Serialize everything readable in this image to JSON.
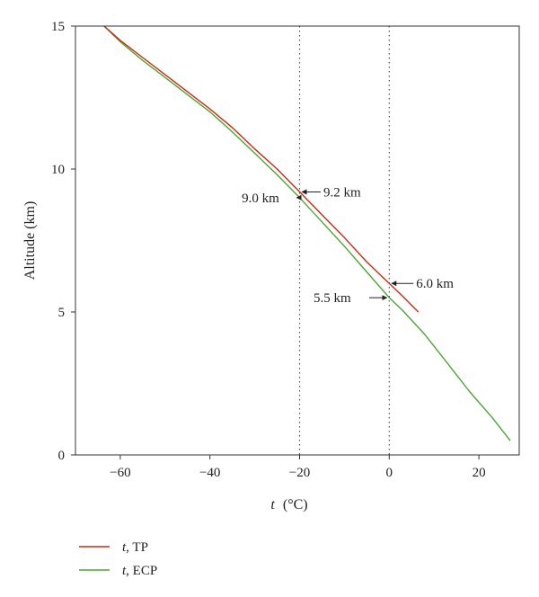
{
  "chart_data": {
    "type": "line",
    "xlabel": {
      "var": "t",
      "unit": "(°C)"
    },
    "ylabel": "Altitude (km)",
    "xlim": [
      -70,
      29
    ],
    "ylim": [
      0,
      15
    ],
    "x_ticks": [
      -60,
      -40,
      -20,
      0,
      20
    ],
    "x_tick_labels": [
      "−60",
      "−40",
      "−20",
      "0",
      "20"
    ],
    "y_ticks": [
      0,
      5,
      10,
      15
    ],
    "y_tick_labels": [
      "0",
      "5",
      "10",
      "15"
    ],
    "grid": false,
    "vlines": [
      -20,
      0
    ],
    "series": [
      {
        "name_var": "t",
        "name_rest": ", TP",
        "color": "#cc2a10",
        "x": [
          -63.6,
          -60,
          -55,
          -50,
          -45,
          -40,
          -35,
          -30,
          -25,
          -20,
          -15,
          -10,
          -5,
          0,
          3,
          6.5
        ],
        "y": [
          15,
          14.5,
          13.9,
          13.3,
          12.7,
          12.1,
          11.45,
          10.7,
          10.0,
          9.2,
          8.4,
          7.6,
          6.75,
          6.0,
          5.55,
          5.0
        ]
      },
      {
        "name_var": "t",
        "name_rest": ", ECP",
        "color": "#4aa632",
        "x": [
          -63.6,
          -60,
          -55,
          -50,
          -45,
          -40,
          -35,
          -30,
          -25,
          -20,
          -15,
          -10,
          -5,
          0,
          3,
          8,
          13,
          18,
          23,
          27
        ],
        "y": [
          15,
          14.45,
          13.8,
          13.2,
          12.6,
          12.0,
          11.3,
          10.55,
          9.8,
          9.0,
          8.15,
          7.3,
          6.4,
          5.5,
          5.05,
          4.2,
          3.2,
          2.2,
          1.3,
          0.5
        ]
      }
    ],
    "annotations": [
      {
        "text": "9.2 km",
        "point": [
          -20,
          9.2
        ],
        "text_anchor": [
          -14.7,
          9.2
        ],
        "series": "TP"
      },
      {
        "text": "9.0 km",
        "point": [
          -20,
          9.0
        ],
        "text_anchor": [
          -32.5,
          9.0
        ],
        "series": "ECP"
      },
      {
        "text": "6.0 km",
        "point": [
          0,
          6.0
        ],
        "text_anchor": [
          6.0,
          6.0
        ],
        "series": "TP"
      },
      {
        "text": "5.5 km",
        "point": [
          0,
          5.5
        ],
        "text_anchor": [
          -16.5,
          5.5
        ],
        "series": "ECP"
      }
    ],
    "legend_position": "bottom-left"
  }
}
